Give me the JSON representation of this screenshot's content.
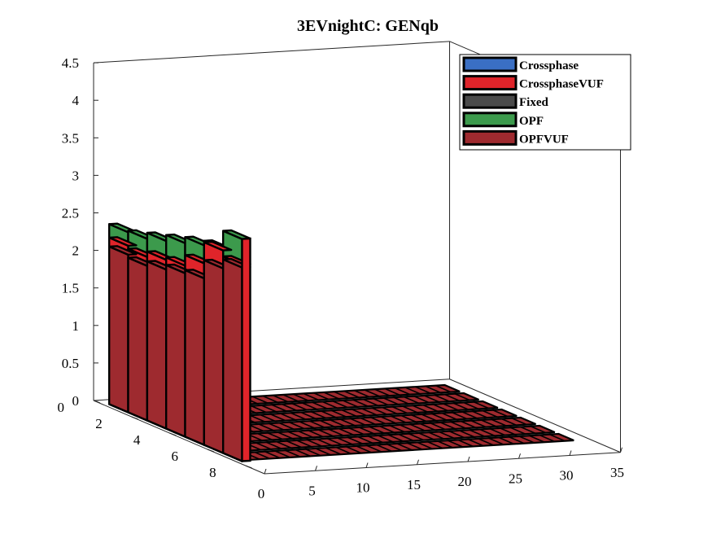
{
  "chart_data": {
    "type": "bar3",
    "title": "3EVnightC: GENqb",
    "zlim": [
      0,
      4.5
    ],
    "z_ticks": [
      "0",
      "0.5",
      "1",
      "1.5",
      "2",
      "2.5",
      "3",
      "3.5",
      "4",
      "4.5"
    ],
    "y_ticks": [
      "0",
      "2",
      "4",
      "6",
      "8"
    ],
    "x_ticks": [
      "0",
      "5",
      "10",
      "15",
      "20",
      "25",
      "30",
      "35"
    ],
    "xlim": [
      0,
      35
    ],
    "ylim": [
      0,
      9
    ],
    "num_rows": 7,
    "num_cols": 33,
    "legend_position": "top-right",
    "series": [
      {
        "name": "Crossphase",
        "color": "#3a6fc4",
        "values": [
          0,
          0,
          0,
          0,
          0,
          0,
          0
        ]
      },
      {
        "name": "CrossphaseVUF",
        "color": "#e0242a",
        "values": [
          2.22,
          2.18,
          2.25,
          2.28,
          2.42,
          2.7,
          2.62
        ]
      },
      {
        "name": "Fixed",
        "color": "#4a4a4a",
        "values": [
          0,
          0,
          0,
          0,
          0,
          0,
          0
        ]
      },
      {
        "name": "OPF",
        "color": "#3c9a4c",
        "values": [
          2.4,
          2.42,
          2.5,
          2.58,
          2.66,
          2.72,
          2.96
        ]
      },
      {
        "name": "OPFVUF",
        "color": "#9e2a2f",
        "values": [
          2.1,
          2.06,
          2.12,
          2.18,
          2.22,
          2.46,
          2.58
        ]
      }
    ]
  }
}
